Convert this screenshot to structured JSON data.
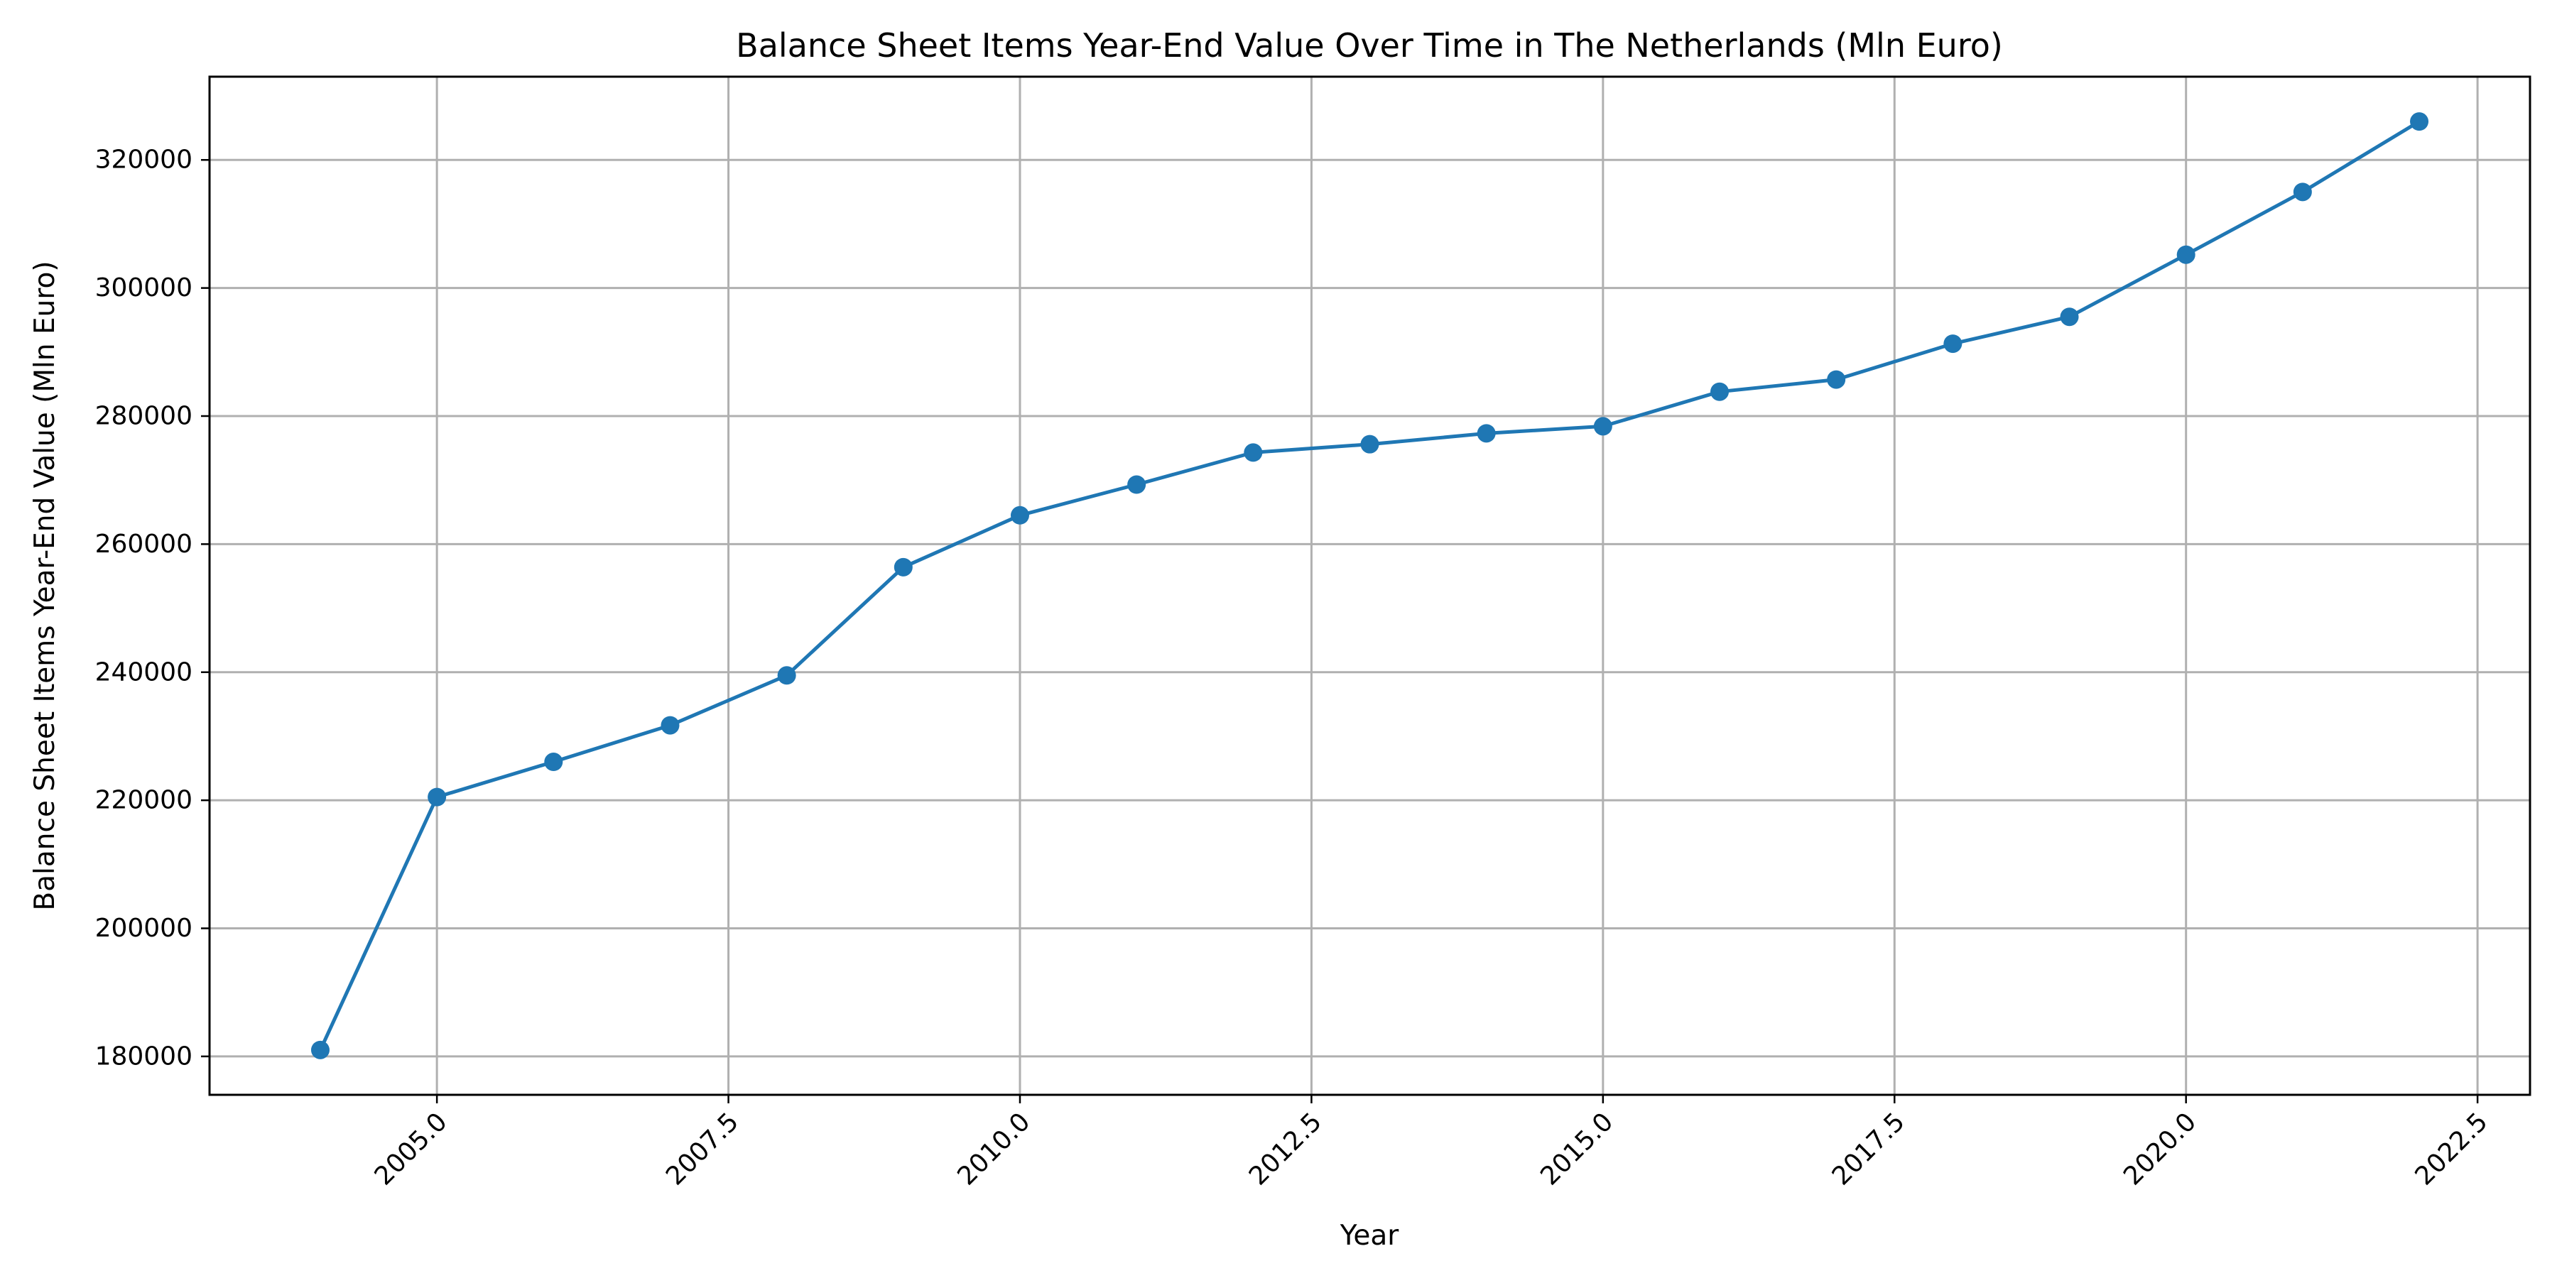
{
  "chart_data": {
    "type": "line",
    "title": "Balance Sheet Items Year-End Value Over Time in The Netherlands (Mln Euro)",
    "xlabel": "Year",
    "ylabel": "Balance Sheet Items Year-End Value (Mln Euro)",
    "xlim": [
      2003.05,
      2022.95
    ],
    "ylim": [
      174000,
      333000
    ],
    "xticks": [
      2005.0,
      2007.5,
      2010.0,
      2012.5,
      2015.0,
      2017.5,
      2020.0,
      2022.5
    ],
    "xtick_labels": [
      "2005.0",
      "2007.5",
      "2010.0",
      "2012.5",
      "2015.0",
      "2017.5",
      "2020.0",
      "2022.5"
    ],
    "yticks": [
      180000,
      200000,
      220000,
      240000,
      260000,
      280000,
      300000,
      320000
    ],
    "ytick_labels": [
      "180000",
      "200000",
      "220000",
      "240000",
      "260000",
      "280000",
      "300000",
      "320000"
    ],
    "grid": true,
    "marker": "circle",
    "series": [
      {
        "color": "#1f77b4",
        "x": [
          2004,
          2005,
          2006,
          2007,
          2008,
          2009,
          2010,
          2011,
          2012,
          2013,
          2014,
          2015,
          2016,
          2017,
          2018,
          2019,
          2020,
          2021,
          2022
        ],
        "values": [
          181000,
          220500,
          226000,
          231700,
          239500,
          256400,
          264500,
          269300,
          274300,
          275600,
          277300,
          278400,
          283800,
          285700,
          291300,
          295500,
          305200,
          315000,
          326000
        ]
      }
    ]
  }
}
